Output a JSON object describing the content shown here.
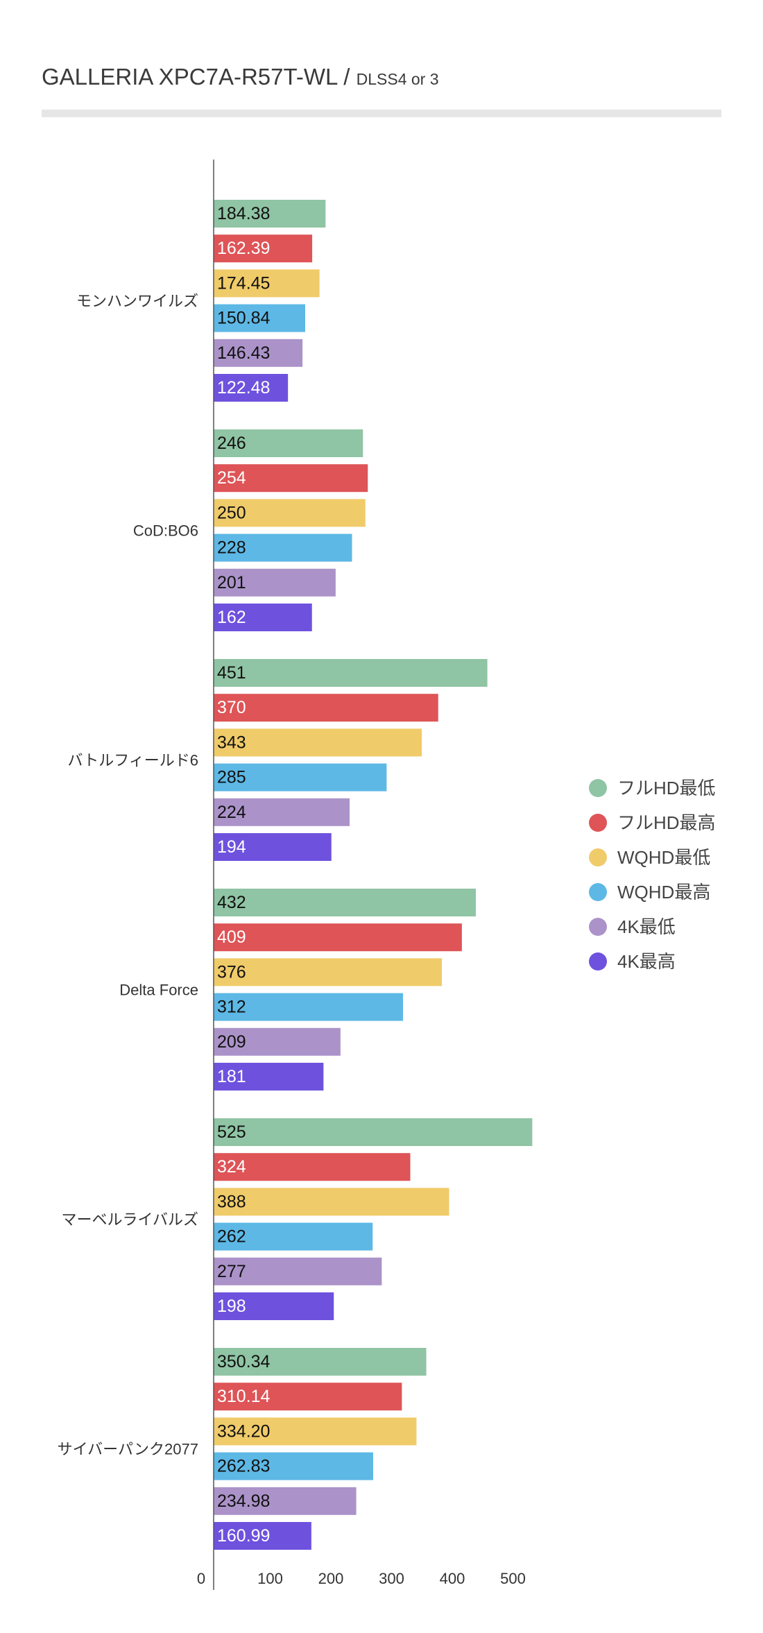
{
  "chart_data": {
    "type": "bar",
    "orientation": "horizontal",
    "title": "GALLERIA XPC7A-R57T-WL / ",
    "subtitle": "DLSS4 or 3",
    "categories": [
      "モンハンワイルズ",
      "CoD:BO6",
      "バトルフィールド6",
      "Delta Force",
      "マーベルライバルズ",
      "サイバーパンク2077"
    ],
    "series": [
      {
        "name": "フルHD最低",
        "color": "#8fc4a4",
        "label_color": "#111111",
        "values": [
          184.38,
          246,
          451,
          432,
          525,
          350.34
        ],
        "labels": [
          "184.38",
          "246",
          "451",
          "432",
          "525",
          "350.34"
        ]
      },
      {
        "name": "フルHD最高",
        "color": "#de5457",
        "label_color": "#ffffff",
        "values": [
          162.39,
          254,
          370,
          409,
          324,
          310.14
        ],
        "labels": [
          "162.39",
          "254",
          "370",
          "409",
          "324",
          "310.14"
        ]
      },
      {
        "name": "WQHD最低",
        "color": "#f0cb6a",
        "label_color": "#111111",
        "values": [
          174.45,
          250,
          343,
          376,
          388,
          334.2
        ],
        "labels": [
          "174.45",
          "250",
          "343",
          "376",
          "388",
          "334.20"
        ]
      },
      {
        "name": "WQHD最高",
        "color": "#5db8e5",
        "label_color": "#111111",
        "values": [
          150.84,
          228,
          285,
          312,
          262,
          262.83
        ],
        "labels": [
          "150.84",
          "228",
          "285",
          "312",
          "262",
          "262.83"
        ]
      },
      {
        "name": "4K最低",
        "color": "#ab93c9",
        "label_color": "#111111",
        "values": [
          146.43,
          201,
          224,
          209,
          277,
          234.98
        ],
        "labels": [
          "146.43",
          "201",
          "224",
          "209",
          "277",
          "234.98"
        ]
      },
      {
        "name": "4K最高",
        "color": "#6e52de",
        "label_color": "#ffffff",
        "values": [
          122.48,
          162,
          194,
          181,
          198,
          160.99
        ],
        "labels": [
          "122.48",
          "162",
          "194",
          "181",
          "198",
          "160.99"
        ]
      }
    ],
    "x_ticks": [
      0,
      100,
      200,
      300,
      400,
      500
    ],
    "xlim": [
      0,
      600
    ],
    "xlabel": "",
    "ylabel": "",
    "grid": false,
    "legend_position": "right"
  }
}
